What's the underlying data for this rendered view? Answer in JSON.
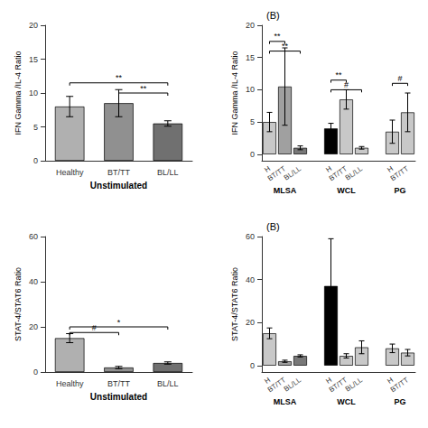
{
  "chart_data": [
    {
      "type": "bar",
      "xlabel": "Unstimulated",
      "ylabel": "IFN Gamma /IL-4 Ratio",
      "categories": [
        "Healthy",
        "BT/TT",
        "BL/LL"
      ],
      "values": [
        8.0,
        8.5,
        5.5
      ],
      "errors": [
        1.5,
        2.0,
        0.4
      ],
      "colors": [
        "#b0b0b0",
        "#909090",
        "#707070"
      ],
      "ylim": [
        0,
        20
      ],
      "yticks": [
        0,
        5,
        10,
        15,
        20
      ],
      "annotations": [
        {
          "from": 0,
          "to": 2,
          "y": 11.5,
          "text": "**"
        },
        {
          "from": 1,
          "to": 2,
          "y": 10.0,
          "text": "**"
        }
      ],
      "grid": false
    },
    {
      "type": "bar",
      "title": "(B)",
      "ylabel": "IFN Gamma /IL-4 Ratio",
      "group_labels": [
        "MLSA",
        "WCL",
        "PG"
      ],
      "group_of": [
        "MLSA",
        "MLSA",
        "MLSA",
        "WCL",
        "WCL",
        "WCL",
        "PG",
        "PG"
      ],
      "categories": [
        "H",
        "BT/TT",
        "BL/LL",
        "H",
        "BT/TT",
        "BL/LL",
        "H",
        "BT/TT"
      ],
      "values": [
        5.0,
        10.5,
        1.0,
        4.0,
        8.5,
        1.0,
        3.5,
        6.5
      ],
      "errors": [
        1.5,
        6.0,
        0.3,
        0.8,
        1.5,
        0.2,
        1.8,
        3.0
      ],
      "colors": [
        "#c8c8c8",
        "#a0a0a0",
        "#787878",
        "#000000",
        "#c8c8c8",
        "#c8c8c8",
        "#c8c8c8",
        "#c8c8c8"
      ],
      "ylim": [
        -1,
        20
      ],
      "yticks": [
        0,
        5,
        10,
        15,
        20
      ],
      "annotations": [
        {
          "from": 0,
          "to": 1,
          "y": 17.5,
          "text": "**"
        },
        {
          "from": 0,
          "to": 2,
          "y": 16.0,
          "text": "**"
        },
        {
          "from": 3,
          "to": 4,
          "y": 11.5,
          "text": "**"
        },
        {
          "from": 3,
          "to": 5,
          "y": 10.0,
          "text": "#"
        },
        {
          "from": 6,
          "to": 7,
          "y": 11.0,
          "text": "#"
        }
      ],
      "grid": false
    },
    {
      "type": "bar",
      "xlabel": "Unstimulated",
      "ylabel": "STAT-4/STAT6 Ratio",
      "categories": [
        "Healthy",
        "BT/TT",
        "BL/LL"
      ],
      "values": [
        15.0,
        2.0,
        4.0
      ],
      "errors": [
        2.0,
        0.5,
        0.5
      ],
      "colors": [
        "#b0b0b0",
        "#909090",
        "#707070"
      ],
      "ylim": [
        0,
        60
      ],
      "yticks": [
        0,
        20,
        40,
        60
      ],
      "annotations": [
        {
          "from": 0,
          "to": 2,
          "y": 20.0,
          "text": "*"
        },
        {
          "from": 0,
          "to": 1,
          "y": 17.5,
          "text": "#"
        }
      ],
      "grid": false
    },
    {
      "type": "bar",
      "title": "(B)",
      "ylabel": "STAT-4/STAT6 Ratio",
      "group_labels": [
        "MLSA",
        "WCL",
        "PG"
      ],
      "group_of": [
        "MLSA",
        "MLSA",
        "MLSA",
        "WCL",
        "WCL",
        "WCL",
        "PG",
        "PG"
      ],
      "categories": [
        "H",
        "BT/TT",
        "BL/LL",
        "H",
        "BT/TT",
        "BL/LL",
        "H",
        "BT/TT"
      ],
      "values": [
        15.0,
        2.0,
        4.5,
        37.0,
        4.5,
        8.5,
        8.0,
        6.0
      ],
      "errors": [
        2.5,
        0.5,
        0.5,
        22.0,
        1.0,
        3.0,
        2.0,
        1.5
      ],
      "colors": [
        "#c8c8c8",
        "#a0a0a0",
        "#787878",
        "#000000",
        "#c8c8c8",
        "#c8c8c8",
        "#c8c8c8",
        "#c8c8c8"
      ],
      "ylim": [
        -3,
        60
      ],
      "yticks": [
        0,
        20,
        40,
        60
      ],
      "grid": false
    }
  ]
}
